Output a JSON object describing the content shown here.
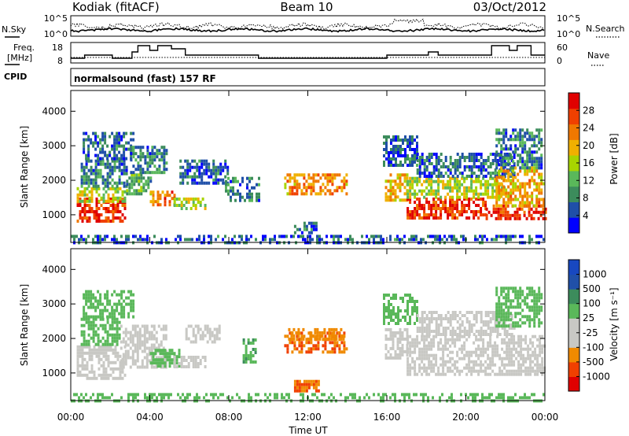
{
  "header": {
    "station": "Kodiak (fitACF)",
    "beam": "Beam 10",
    "date": "03/Oct/2012"
  },
  "strip_panels": {
    "noise": {
      "left_label": "N.Sky",
      "right_label": "N.Search",
      "left_ticks": [
        "10^5",
        "10^0"
      ],
      "right_ticks": [
        "10^5",
        "10^0"
      ]
    },
    "freq": {
      "left_label_1": "Freq.",
      "left_label_2": "[MHz]",
      "right_label": "Nave",
      "left_ticks": [
        "18",
        "8"
      ],
      "right_ticks": [
        "60",
        "0"
      ]
    },
    "cpid": {
      "label": "CPID",
      "text": "normalsound (fast) 157 RF"
    }
  },
  "colors": {
    "power_scale": [
      "#0000ff",
      "#1f4fa8",
      "#3c8c5c",
      "#5ab85a",
      "#a8d400",
      "#f0b000",
      "#f07800",
      "#f04000",
      "#e00000"
    ],
    "velocity_scale": [
      "#e00000",
      "#f04000",
      "#f08a00",
      "#c8c8c4",
      "#c8c8c4",
      "#5ab85a",
      "#3c8c5c",
      "#2050a8",
      "#1848c0"
    ],
    "ground_scatter": "#c8c8c4"
  },
  "chart_data": [
    {
      "type": "heatmap",
      "name": "power",
      "ylabel": "Slant Range [km]",
      "yticks": [
        "1000",
        "2000",
        "3000",
        "4000"
      ],
      "ylim": [
        200,
        4600
      ],
      "xlim_hours": [
        0,
        24
      ],
      "colorbar": {
        "label": "Power [dB]",
        "ticks": [
          "4",
          "8",
          "12",
          "16",
          "20",
          "24",
          "28"
        ],
        "range": [
          0,
          32
        ]
      },
      "regions": [
        {
          "t": [
            0.3,
            2.7
          ],
          "r": [
            850,
            1500
          ],
          "v": 28
        },
        {
          "t": [
            0.3,
            2.7
          ],
          "r": [
            1400,
            1800
          ],
          "v": 16
        },
        {
          "t": [
            0.5,
            2.8
          ],
          "r": [
            1800,
            2600
          ],
          "v": 8
        },
        {
          "t": [
            0.6,
            3.2
          ],
          "r": [
            2600,
            3400
          ],
          "v": 6
        },
        {
          "t": [
            2.8,
            4.0
          ],
          "r": [
            1600,
            2200
          ],
          "v": 12
        },
        {
          "t": [
            3.0,
            4.8
          ],
          "r": [
            2200,
            3000
          ],
          "v": 8
        },
        {
          "t": [
            4.0,
            5.2
          ],
          "r": [
            1300,
            1700
          ],
          "v": 24
        },
        {
          "t": [
            5.2,
            6.8
          ],
          "r": [
            1150,
            1500
          ],
          "v": 16
        },
        {
          "t": [
            5.5,
            8.0
          ],
          "r": [
            1900,
            2600
          ],
          "v": 6
        },
        {
          "t": [
            7.8,
            9.5
          ],
          "r": [
            1400,
            2100
          ],
          "v": 8
        },
        {
          "t": [
            10.8,
            14.0
          ],
          "r": [
            1600,
            2200
          ],
          "v": 22
        },
        {
          "t": [
            11.3,
            12.5
          ],
          "r": [
            500,
            800
          ],
          "v": 6
        },
        {
          "t": [
            15.9,
            17.0
          ],
          "r": [
            1400,
            2200
          ],
          "v": 20
        },
        {
          "t": [
            15.8,
            17.5
          ],
          "r": [
            2400,
            3300
          ],
          "v": 6
        },
        {
          "t": [
            17.0,
            21.0
          ],
          "r": [
            950,
            1500
          ],
          "v": 28
        },
        {
          "t": [
            17.0,
            22.0
          ],
          "r": [
            1500,
            2100
          ],
          "v": 16
        },
        {
          "t": [
            17.5,
            22.5
          ],
          "r": [
            2100,
            2800
          ],
          "v": 6
        },
        {
          "t": [
            21.0,
            24.0
          ],
          "r": [
            900,
            1300
          ],
          "v": 28
        },
        {
          "t": [
            21.5,
            24.0
          ],
          "r": [
            1300,
            2400
          ],
          "v": 20
        },
        {
          "t": [
            21.5,
            23.8
          ],
          "r": [
            2400,
            3500
          ],
          "v": 8
        },
        {
          "t": [
            0.0,
            24.0
          ],
          "r": [
            200,
            420
          ],
          "v": 6
        }
      ]
    },
    {
      "type": "heatmap",
      "name": "velocity",
      "ylabel": "Slant Range [km]",
      "yticks": [
        "1000",
        "2000",
        "3000",
        "4000"
      ],
      "ylim": [
        200,
        4600
      ],
      "xlim_hours": [
        0,
        24
      ],
      "xticks": [
        "00:00",
        "04:00",
        "08:00",
        "12:00",
        "16:00",
        "20:00",
        "00:00"
      ],
      "xlabel": "Time UT",
      "colorbar": {
        "label": "Velocity [m s⁻¹]",
        "ticks": [
          "-1000",
          "-500",
          "-100",
          "-25",
          "25",
          "100",
          "500",
          "1000"
        ]
      },
      "regions": [
        {
          "t": [
            0.3,
            2.7
          ],
          "r": [
            850,
            1800
          ],
          "v": 0
        },
        {
          "t": [
            0.5,
            2.5
          ],
          "r": [
            1800,
            2600
          ],
          "v": 150
        },
        {
          "t": [
            0.6,
            3.2
          ],
          "r": [
            2600,
            3400
          ],
          "v": 120
        },
        {
          "t": [
            2.5,
            4.8
          ],
          "r": [
            1200,
            2400
          ],
          "v": 0
        },
        {
          "t": [
            4.0,
            5.5
          ],
          "r": [
            1200,
            1700
          ],
          "v": 200
        },
        {
          "t": [
            5.2,
            6.8
          ],
          "r": [
            1150,
            1500
          ],
          "v": 0
        },
        {
          "t": [
            5.8,
            7.5
          ],
          "r": [
            1900,
            2400
          ],
          "v": 0
        },
        {
          "t": [
            8.7,
            9.3
          ],
          "r": [
            1300,
            2000
          ],
          "v": 250
        },
        {
          "t": [
            10.8,
            14.0
          ],
          "r": [
            1600,
            2200
          ],
          "v": -300
        },
        {
          "t": [
            11.0,
            13.8
          ],
          "r": [
            2000,
            2300
          ],
          "v": -120
        },
        {
          "t": [
            11.3,
            12.5
          ],
          "r": [
            500,
            800
          ],
          "v": -300
        },
        {
          "t": [
            15.9,
            17.0
          ],
          "r": [
            1400,
            2300
          ],
          "v": 0
        },
        {
          "t": [
            15.8,
            17.5
          ],
          "r": [
            2400,
            3300
          ],
          "v": 120
        },
        {
          "t": [
            17.0,
            24.0
          ],
          "r": [
            950,
            2100
          ],
          "v": 0
        },
        {
          "t": [
            17.5,
            22.5
          ],
          "r": [
            2100,
            2800
          ],
          "v": 0
        },
        {
          "t": [
            21.5,
            23.8
          ],
          "r": [
            2400,
            3500
          ],
          "v": 150
        },
        {
          "t": [
            0.0,
            24.0
          ],
          "r": [
            200,
            420
          ],
          "v": 60
        }
      ]
    }
  ]
}
